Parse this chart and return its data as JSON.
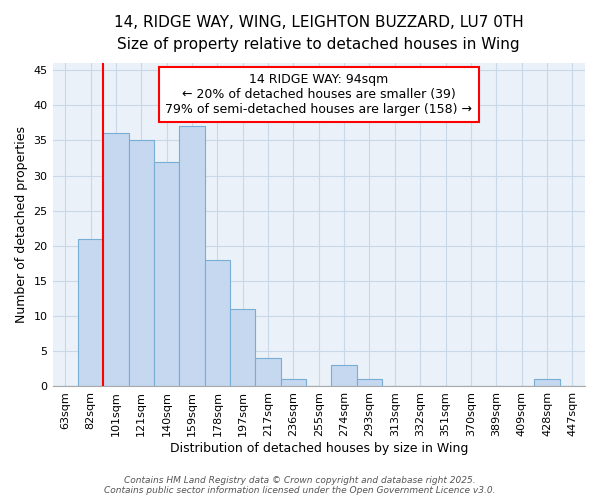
{
  "title1": "14, RIDGE WAY, WING, LEIGHTON BUZZARD, LU7 0TH",
  "title2": "Size of property relative to detached houses in Wing",
  "xlabel": "Distribution of detached houses by size in Wing",
  "ylabel": "Number of detached properties",
  "categories": [
    "63sqm",
    "82sqm",
    "101sqm",
    "121sqm",
    "140sqm",
    "159sqm",
    "178sqm",
    "197sqm",
    "217sqm",
    "236sqm",
    "255sqm",
    "274sqm",
    "293sqm",
    "313sqm",
    "332sqm",
    "351sqm",
    "370sqm",
    "389sqm",
    "409sqm",
    "428sqm",
    "447sqm"
  ],
  "values": [
    0,
    21,
    36,
    35,
    32,
    37,
    18,
    11,
    4,
    1,
    0,
    3,
    1,
    0,
    0,
    0,
    0,
    0,
    0,
    1,
    0
  ],
  "bar_color": "#c5d8f0",
  "bar_edge_color": "#7aadd4",
  "red_line_x": 2.0,
  "annotation_line1": "14 RIDGE WAY: 94sqm",
  "annotation_line2": "← 20% of detached houses are smaller (39)",
  "annotation_line3": "79% of semi-detached houses are larger (158) →",
  "annotation_box_color": "white",
  "annotation_box_edge_color": "red",
  "ylim": [
    0,
    46
  ],
  "yticks": [
    0,
    5,
    10,
    15,
    20,
    25,
    30,
    35,
    40,
    45
  ],
  "grid_color": "#c8d8e8",
  "bg_color": "#eaf1f8",
  "footer1": "Contains HM Land Registry data © Crown copyright and database right 2025.",
  "footer2": "Contains public sector information licensed under the Open Government Licence v3.0.",
  "title_fontsize": 11,
  "subtitle_fontsize": 10,
  "tick_fontsize": 8,
  "label_fontsize": 9,
  "annotation_fontsize": 9
}
